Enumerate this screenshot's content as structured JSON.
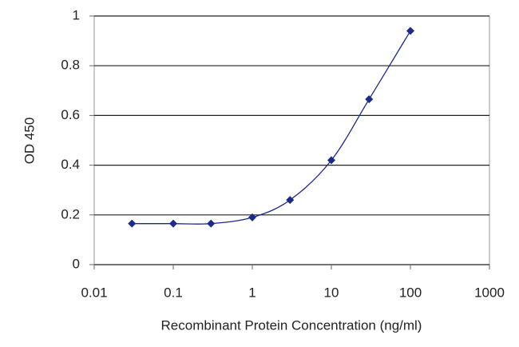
{
  "chart_data": {
    "type": "line",
    "xlabel": "Recombinant Protein Concentration (ng/ml)",
    "ylabel": "OD 450",
    "x": [
      0.03,
      0.1,
      0.3,
      1,
      3,
      10,
      30,
      100
    ],
    "series": [
      {
        "color": "#1c2a8c",
        "values": [
          0.165,
          0.165,
          0.165,
          0.19,
          0.26,
          0.42,
          0.665,
          0.94
        ]
      }
    ],
    "xscale": "log",
    "xlim": [
      0.01,
      1000
    ],
    "xticks": [
      0.01,
      0.1,
      1,
      10,
      100,
      1000
    ],
    "ylim": [
      0,
      1
    ],
    "yticks": [
      0,
      0.2,
      0.4,
      0.6,
      0.8,
      1
    ],
    "grid": true
  }
}
